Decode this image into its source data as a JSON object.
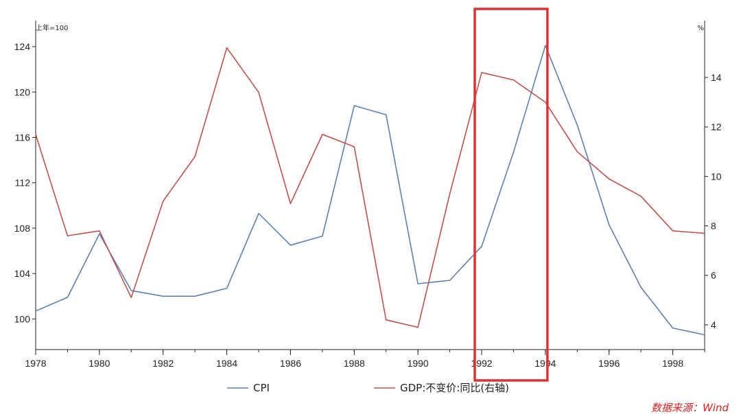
{
  "chart_data": {
    "type": "line",
    "x": [
      1978,
      1979,
      1980,
      1981,
      1982,
      1983,
      1984,
      1985,
      1986,
      1987,
      1988,
      1989,
      1990,
      1991,
      1992,
      1993,
      1994,
      1995,
      1996,
      1997,
      1998,
      1999
    ],
    "x_ticks": [
      "1978",
      "1980",
      "1982",
      "1984",
      "1986",
      "1988",
      "1990",
      "1992",
      "1994",
      "1996",
      "1998"
    ],
    "xlim": [
      1978,
      1999
    ],
    "left_axis": {
      "unit_label": "上年=100",
      "ylim": [
        97.3,
        126.3
      ],
      "ticks": [
        100,
        104,
        108,
        112,
        116,
        120,
        124
      ]
    },
    "right_axis": {
      "unit_label": "%",
      "ylim": [
        3.0,
        16.3
      ],
      "ticks": [
        4,
        6,
        8,
        10,
        12,
        14
      ]
    },
    "series": [
      {
        "name": "CPI",
        "axis": "left",
        "color": "#5b7fb0",
        "values": [
          100.7,
          101.9,
          107.5,
          102.5,
          102.0,
          102.0,
          102.7,
          109.3,
          106.5,
          107.3,
          118.8,
          118.0,
          103.1,
          103.4,
          106.4,
          114.7,
          124.1,
          117.1,
          108.3,
          102.8,
          99.2,
          98.6
        ]
      },
      {
        "name": "GDP:不变价:同比(右轴)",
        "axis": "right",
        "color": "#c0504d",
        "values": [
          11.7,
          7.6,
          7.8,
          5.1,
          9.0,
          10.8,
          15.2,
          13.4,
          8.9,
          11.7,
          11.2,
          4.2,
          3.9,
          9.3,
          14.2,
          13.9,
          13.0,
          11.0,
          9.9,
          9.2,
          7.8,
          7.7
        ]
      }
    ],
    "highlight": {
      "x_range": [
        1992,
        1994
      ],
      "color": "#e03030"
    }
  },
  "source_note": "数据来源：Wind",
  "source_color": "#e02020"
}
